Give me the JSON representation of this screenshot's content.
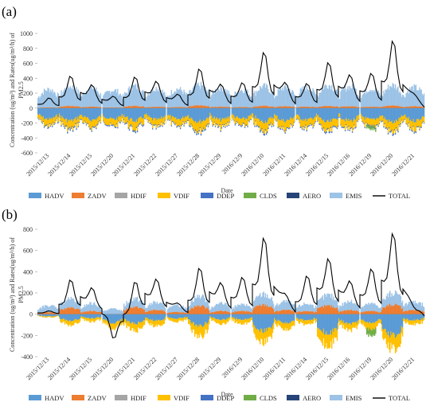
{
  "panel_labels": [
    "(a)",
    "(b)"
  ],
  "ylabel_main": "Concentration (ug/m³) and Rates(ug/m³/h) of",
  "ylabel_sub": "PM2.5",
  "xlabel": "Date",
  "legend": [
    {
      "name": "HADV",
      "color": "#5b9bd5",
      "kind": "box"
    },
    {
      "name": "ZADV",
      "color": "#ed7d31",
      "kind": "box"
    },
    {
      "name": "HDIF",
      "color": "#a5a5a5",
      "kind": "box"
    },
    {
      "name": "VDIF",
      "color": "#ffc000",
      "kind": "box"
    },
    {
      "name": "DDEP",
      "color": "#4472c4",
      "kind": "box"
    },
    {
      "name": "CLDS",
      "color": "#70ad47",
      "kind": "box"
    },
    {
      "name": "AERO",
      "color": "#264478",
      "kind": "box"
    },
    {
      "name": "EMIS",
      "color": "#9dc3e6",
      "kind": "box"
    },
    {
      "name": "TOTAL",
      "color": "#000000",
      "kind": "line"
    }
  ],
  "chart_data": [
    {
      "type": "bar",
      "panel": "(a)",
      "xlabel": "Date",
      "ylim": [
        -600,
        1000
      ],
      "yticks": [
        -600,
        -400,
        -200,
        0,
        200,
        400,
        600,
        800,
        1000
      ],
      "categories": [
        "2015/12/13",
        "2015/12/14",
        "2015/12/15",
        "2015/12/20",
        "2015/12/21",
        "2015/12/22",
        "2015/12/27",
        "2015/12/28",
        "2015/12/29",
        "2016/12/9",
        "2016/12/10",
        "2016/12/11",
        "2016/12/14",
        "2016/12/15",
        "2016/12/16",
        "2016/12/19",
        "2016/12/20",
        "2016/12/21"
      ],
      "series": [
        {
          "name": "EMIS",
          "values": [
            240,
            260,
            250,
            230,
            260,
            250,
            240,
            270,
            250,
            230,
            260,
            250,
            250,
            280,
            260,
            240,
            270,
            250
          ]
        },
        {
          "name": "ZADV",
          "values": [
            10,
            30,
            20,
            10,
            30,
            20,
            15,
            35,
            20,
            15,
            30,
            25,
            20,
            30,
            25,
            20,
            35,
            25
          ]
        },
        {
          "name": "HADV",
          "values": [
            -150,
            -170,
            -160,
            -150,
            -170,
            -160,
            -150,
            -180,
            -160,
            -150,
            -180,
            -170,
            -160,
            -190,
            -170,
            -160,
            -190,
            -170
          ]
        },
        {
          "name": "VDIF",
          "values": [
            -90,
            -110,
            -100,
            -90,
            -110,
            -100,
            -90,
            -120,
            -100,
            -90,
            -120,
            -110,
            -100,
            -130,
            -110,
            -100,
            -130,
            -110
          ]
        },
        {
          "name": "DDEP",
          "values": [
            -15,
            -20,
            -15,
            -15,
            -20,
            -15,
            -15,
            -20,
            -15,
            -15,
            -20,
            -15,
            -15,
            -20,
            -15,
            -15,
            -20,
            -15
          ]
        },
        {
          "name": "CLDS",
          "values": [
            0,
            0,
            0,
            0,
            0,
            0,
            0,
            0,
            0,
            0,
            0,
            0,
            0,
            0,
            0,
            -40,
            0,
            0
          ]
        },
        {
          "name": "TOTAL",
          "values": [
            130,
            420,
            250,
            120,
            410,
            300,
            140,
            520,
            240,
            310,
            720,
            230,
            300,
            580,
            360,
            420,
            860,
            50
          ]
        }
      ]
    },
    {
      "type": "bar",
      "panel": "(b)",
      "xlabel": "Date",
      "ylim": [
        -400,
        800
      ],
      "yticks": [
        -400,
        -200,
        0,
        200,
        400,
        600,
        800
      ],
      "categories": [
        "2015/12/13",
        "2015/12/14",
        "2015/12/15",
        "2015/12/20",
        "2015/12/21",
        "2015/12/22",
        "2015/12/27",
        "2015/12/28",
        "2015/12/29",
        "2016/12/9",
        "2016/12/10",
        "2016/12/11",
        "2016/12/14",
        "2016/12/15",
        "2016/12/16",
        "2016/12/19",
        "2016/12/20",
        "2016/12/21"
      ],
      "series": [
        {
          "name": "EMIS",
          "values": [
            60,
            80,
            70,
            50,
            80,
            70,
            60,
            90,
            70,
            60,
            100,
            80,
            70,
            100,
            80,
            70,
            110,
            80
          ]
        },
        {
          "name": "ZADV",
          "values": [
            20,
            60,
            30,
            -40,
            70,
            40,
            20,
            80,
            30,
            30,
            90,
            40,
            30,
            80,
            40,
            30,
            90,
            40
          ]
        },
        {
          "name": "HADV",
          "values": [
            -20,
            -60,
            -40,
            -80,
            -90,
            -60,
            -40,
            -110,
            -50,
            -50,
            -160,
            -80,
            -60,
            -180,
            -90,
            -80,
            -200,
            -60
          ]
        },
        {
          "name": "VDIF",
          "values": [
            -10,
            -40,
            -30,
            -50,
            -70,
            -50,
            -30,
            -100,
            -40,
            -40,
            -110,
            -60,
            -40,
            -120,
            -60,
            -60,
            -130,
            -40
          ]
        },
        {
          "name": "CLDS",
          "values": [
            0,
            0,
            0,
            0,
            0,
            0,
            0,
            0,
            0,
            0,
            0,
            0,
            0,
            0,
            0,
            -60,
            0,
            0
          ]
        },
        {
          "name": "TOTAL",
          "values": [
            30,
            330,
            200,
            -270,
            360,
            280,
            60,
            440,
            230,
            320,
            690,
            80,
            360,
            480,
            240,
            400,
            720,
            -60
          ]
        }
      ]
    }
  ]
}
